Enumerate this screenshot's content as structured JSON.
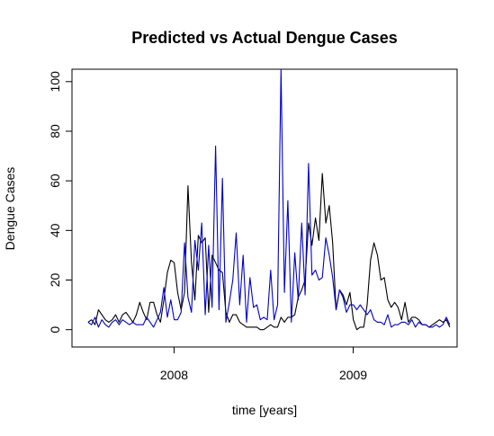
{
  "chart_data": {
    "type": "line",
    "title": "Predicted vs Actual Dengue Cases",
    "xlabel": "time [years]",
    "ylabel": "Dengue Cases",
    "xlim": [
      2007.43,
      2009.58
    ],
    "ylim": [
      -7,
      105
    ],
    "x_ticks": [
      2008,
      2009
    ],
    "x_tick_labels": [
      "2008",
      "2009"
    ],
    "y_ticks": [
      0,
      20,
      40,
      60,
      80,
      100
    ],
    "y_tick_labels": [
      "0",
      "20",
      "40",
      "60",
      "80",
      "100"
    ],
    "grid": false,
    "legend": "none",
    "x_start": 2007.52,
    "x_step": 0.01923,
    "series": [
      {
        "color": "#000000",
        "values": [
          3,
          4,
          2,
          8,
          6,
          4,
          3,
          4,
          6,
          3,
          6,
          7,
          5,
          3,
          6,
          11,
          7,
          4,
          11,
          11,
          6,
          3,
          12,
          23,
          28,
          27,
          15,
          8,
          15,
          58,
          27,
          12,
          38,
          35,
          37,
          7,
          30,
          27,
          24,
          23,
          7,
          3,
          6,
          6,
          3,
          2,
          1,
          1,
          1,
          1,
          0,
          0,
          1,
          2,
          1,
          1,
          5,
          3,
          5,
          5,
          6,
          13,
          16,
          20,
          43,
          34,
          45,
          36,
          63,
          43,
          50,
          35,
          8,
          16,
          14,
          10,
          15,
          4,
          0,
          1,
          1,
          10,
          28,
          35,
          30,
          20,
          21,
          12,
          9,
          11,
          9,
          4,
          11,
          3,
          5,
          5,
          4,
          2,
          2,
          1,
          2,
          3,
          4,
          3,
          4,
          1
        ]
      },
      {
        "color": "#0000cc",
        "values": [
          3,
          2,
          5,
          1,
          4,
          2,
          1,
          3,
          4,
          2,
          4,
          3,
          2,
          3,
          2,
          2,
          2,
          5,
          3,
          1,
          4,
          7,
          17,
          5,
          12,
          4,
          4,
          7,
          35,
          13,
          7,
          36,
          24,
          43,
          6,
          34,
          9,
          74,
          8,
          61,
          3,
          11,
          20,
          39,
          10,
          30,
          3,
          21,
          9,
          10,
          4,
          5,
          4,
          24,
          4,
          10,
          105,
          15,
          52,
          3,
          31,
          12,
          43,
          14,
          67,
          22,
          24,
          20,
          21,
          37,
          30,
          21,
          8,
          16,
          13,
          7,
          10,
          10,
          8,
          10,
          8,
          6,
          8,
          4,
          3,
          3,
          2,
          6,
          1,
          2,
          2,
          3,
          3,
          2,
          4,
          1,
          3,
          2,
          2,
          1,
          1,
          2,
          1,
          2,
          5,
          2
        ]
      }
    ]
  }
}
